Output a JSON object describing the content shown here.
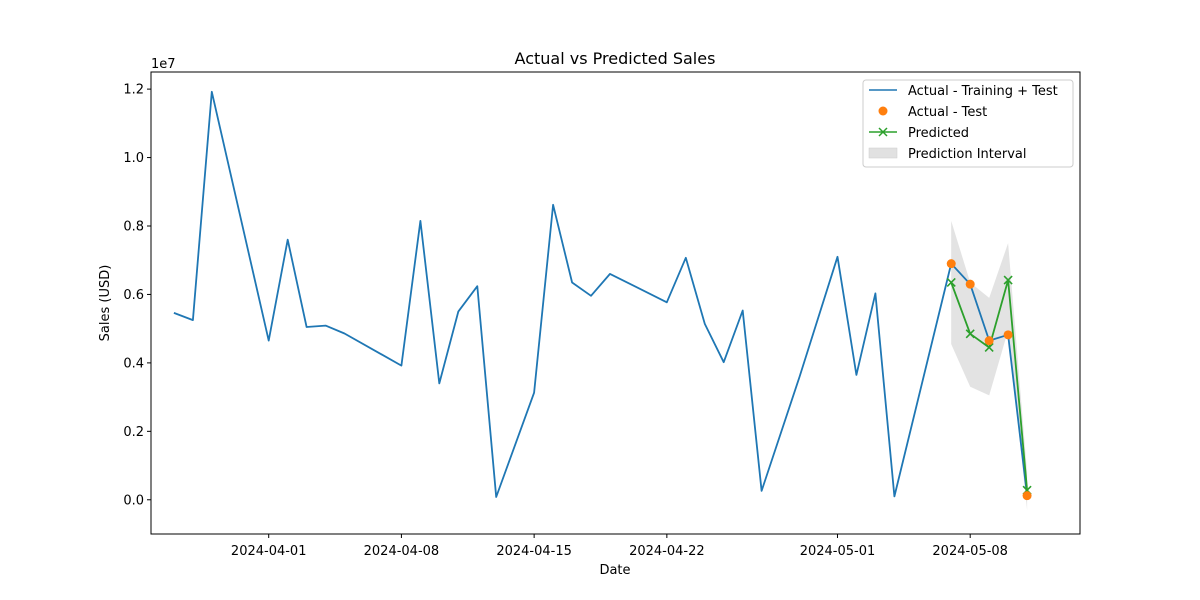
{
  "chart_data": {
    "type": "line",
    "title": "Actual vs Predicted Sales",
    "xlabel": "Date",
    "ylabel": "Sales (USD)",
    "y_scale_note": "1e7",
    "x_ticks": [
      "2024-04-01",
      "2024-04-08",
      "2024-04-15",
      "2024-04-22",
      "2024-05-01",
      "2024-05-08"
    ],
    "y_ticks": [
      "0.0",
      "0.2",
      "0.4",
      "0.6",
      "0.8",
      "1.0",
      "1.2"
    ],
    "ylim": [
      -1000000.0,
      12500000.0
    ],
    "xlim": [
      "2024-03-25T19:00",
      "2024-05-13T19:00"
    ],
    "grid": false,
    "legend_position": "top-right",
    "colors": {
      "actual": "#1f77b4",
      "test": "#ff7f0e",
      "predicted": "#2ca02c",
      "interval": "#d9d9d9"
    },
    "series": [
      {
        "name": "Actual - Training + Test",
        "style": "line",
        "x": [
          "2024-03-27",
          "2024-03-28",
          "2024-03-29",
          "2024-04-01",
          "2024-04-02",
          "2024-04-03",
          "2024-04-04",
          "2024-04-05",
          "2024-04-08",
          "2024-04-09",
          "2024-04-10",
          "2024-04-11",
          "2024-04-12",
          "2024-04-13",
          "2024-04-15",
          "2024-04-16",
          "2024-04-17",
          "2024-04-18",
          "2024-04-19",
          "2024-04-22",
          "2024-04-23",
          "2024-04-24",
          "2024-04-25",
          "2024-04-26",
          "2024-04-27",
          "2024-04-29",
          "2024-05-01",
          "2024-05-02",
          "2024-05-03",
          "2024-05-04",
          "2024-05-07",
          "2024-05-08",
          "2024-05-09",
          "2024-05-10",
          "2024-05-11"
        ],
        "y": [
          5460000,
          5250000,
          11920000,
          4650000,
          7600000,
          5050000,
          5090000,
          4860000,
          3920000,
          8150000,
          3400000,
          5500000,
          6240000,
          80000,
          3130000,
          8620000,
          6350000,
          5960000,
          6600000,
          5770000,
          7070000,
          5140000,
          4020000,
          5530000,
          260000,
          3600000,
          7100000,
          3650000,
          6030000,
          100000,
          6900000,
          6300000,
          4650000,
          4820000,
          120000
        ]
      },
      {
        "name": "Actual - Test",
        "style": "scatter",
        "x": [
          "2024-05-07",
          "2024-05-08",
          "2024-05-09",
          "2024-05-10",
          "2024-05-11"
        ],
        "y": [
          6900000,
          6300000,
          4650000,
          4820000,
          120000
        ]
      },
      {
        "name": "Predicted",
        "style": "line-x",
        "x": [
          "2024-05-07",
          "2024-05-08",
          "2024-05-09",
          "2024-05-10",
          "2024-05-11"
        ],
        "y": [
          6350000,
          4850000,
          4450000,
          6420000,
          280000
        ]
      },
      {
        "name": "Prediction Interval",
        "style": "band",
        "x": [
          "2024-05-07",
          "2024-05-08",
          "2024-05-09",
          "2024-05-10",
          "2024-05-11"
        ],
        "lower": [
          4550000,
          3300000,
          3050000,
          4950000,
          -300000
        ],
        "upper": [
          8150000,
          6350000,
          5900000,
          7500000,
          800000
        ]
      }
    ]
  }
}
